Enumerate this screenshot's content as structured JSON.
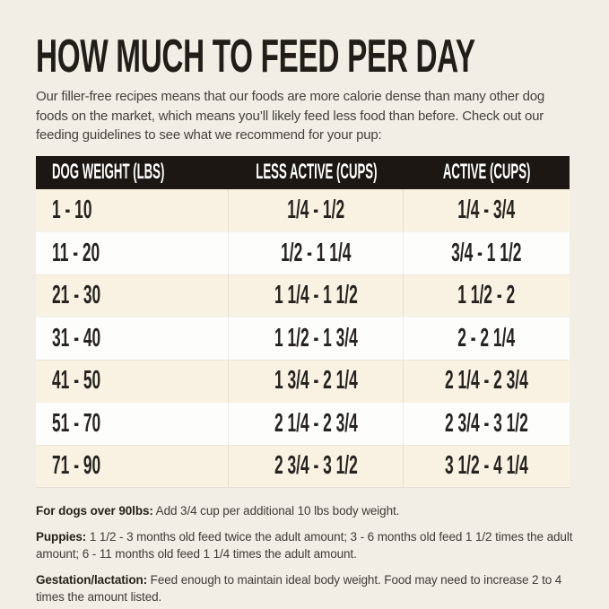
{
  "header": {
    "title": "HOW MUCH TO FEED PER DAY",
    "intro": "Our filler-free recipes means that our foods are more calorie dense than many other dog foods on the market, which means you’ll likely feed less food than before. Check out our feeding guidelines to see what we recommend for your pup:"
  },
  "chart_data": {
    "type": "table",
    "title": "HOW MUCH TO FEED PER DAY",
    "columns": [
      "DOG WEIGHT (LBS)",
      "LESS ACTIVE (CUPS)",
      "ACTIVE (CUPS)"
    ],
    "rows": [
      [
        "1 - 10",
        "1/4 - 1/2",
        "1/4 - 3/4"
      ],
      [
        "11 - 20",
        "1/2 - 1 1/4",
        "3/4 - 1 1/2"
      ],
      [
        "21 - 30",
        "1 1/4 - 1 1/2",
        "1 1/2 - 2"
      ],
      [
        "31 - 40",
        "1 1/2 - 1 3/4",
        "2 - 2 1/4"
      ],
      [
        "41 - 50",
        "1 3/4 - 2 1/4",
        "2 1/4 - 2 3/4"
      ],
      [
        "51 - 70",
        "2 1/4 - 2 3/4",
        "2 3/4 - 3 1/2"
      ],
      [
        "71 - 90",
        "2 3/4 - 3 1/2",
        "3 1/2 - 4 1/4"
      ]
    ],
    "layout": {
      "header_background": "#1c1712",
      "row_alternate_colors": [
        "#f9f2e3",
        "#fdfdfc"
      ],
      "first_column_align": "left",
      "other_columns_align": "center"
    }
  },
  "notes": [
    {
      "label": "For dogs over 90lbs:",
      "text": " Add 3/4 cup per additional 10 lbs body weight."
    },
    {
      "label": "Puppies:",
      "text": " 1 1/2 - 3 months old feed twice the adult amount; 3 - 6 months old feed 1 1/2 times the adult amount; 6 - 11 months old feed 1 1/4 times the adult amount."
    },
    {
      "label": "Gestation/lactation:",
      "text": " Feed enough to maintain ideal body weight. Food may need to increase 2 to 4 times the amount listed."
    }
  ],
  "colors": {
    "page_background": "#f2eee5",
    "header_background": "#1c1712",
    "header_text": "#ffffff",
    "row_cream": "#f9f2e3",
    "row_white": "#fdfdfc",
    "title_text": "#211d18",
    "body_text": "#45423c",
    "cell_text": "#262320"
  }
}
